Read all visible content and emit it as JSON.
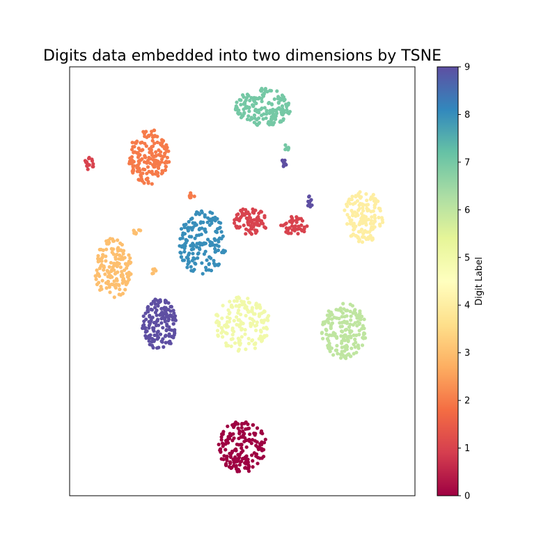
{
  "chart_data": {
    "type": "scatter",
    "title": "Digits data embedded into two dimensions by TSNE",
    "xlabel": "",
    "ylabel": "",
    "xlim": [
      0,
      100
    ],
    "ylim": [
      0,
      100
    ],
    "x_ticks_visible": false,
    "y_ticks_visible": false,
    "grid": false,
    "colormap": "Spectral",
    "colormap_stops": [
      "#9e0142",
      "#d53e4f",
      "#f46d43",
      "#fdae61",
      "#fee08b",
      "#ffffbf",
      "#e6f598",
      "#abdda4",
      "#66c2a5",
      "#3288bd",
      "#5e4fa2"
    ],
    "colorbar": {
      "label": "Digit Label",
      "range": [
        0,
        9
      ],
      "ticks": [
        "0",
        "1",
        "2",
        "3",
        "4",
        "5",
        "6",
        "7",
        "8",
        "9"
      ]
    },
    "clusters": [
      {
        "label": 0,
        "cx": 50.0,
        "cy": 11.5,
        "rx": 7.0,
        "ry": 6.0,
        "n": 180
      },
      {
        "label": 1,
        "cx": 52.5,
        "cy": 64.0,
        "rx": 5.0,
        "ry": 3.2,
        "n": 80
      },
      {
        "label": 1,
        "cx": 65.0,
        "cy": 63.0,
        "rx": 3.8,
        "ry": 2.2,
        "n": 45
      },
      {
        "label": 1,
        "cx": 5.7,
        "cy": 77.5,
        "rx": 1.4,
        "ry": 1.5,
        "n": 15
      },
      {
        "label": 2,
        "cx": 23.0,
        "cy": 79.0,
        "rx": 6.0,
        "ry": 6.5,
        "n": 170
      },
      {
        "label": 2,
        "cx": 35.5,
        "cy": 70.0,
        "rx": 1.2,
        "ry": 0.7,
        "n": 8
      },
      {
        "label": 3,
        "cx": 12.5,
        "cy": 53.0,
        "rx": 5.5,
        "ry": 7.0,
        "n": 160
      },
      {
        "label": 3,
        "cx": 19.5,
        "cy": 61.5,
        "rx": 1.5,
        "ry": 0.8,
        "n": 8
      },
      {
        "label": 3,
        "cx": 24.5,
        "cy": 52.5,
        "rx": 0.8,
        "ry": 1.0,
        "n": 6
      },
      {
        "label": 4,
        "cx": 85.0,
        "cy": 65.0,
        "rx": 6.0,
        "ry": 6.0,
        "n": 150
      },
      {
        "label": 5,
        "cx": 50.0,
        "cy": 40.0,
        "rx": 8.0,
        "ry": 6.5,
        "n": 160
      },
      {
        "label": 6,
        "cx": 79.5,
        "cy": 38.5,
        "rx": 6.5,
        "ry": 6.5,
        "n": 170
      },
      {
        "label": 7,
        "cx": 56.0,
        "cy": 90.5,
        "rx": 8.0,
        "ry": 4.5,
        "n": 170
      },
      {
        "label": 7,
        "cx": 63.0,
        "cy": 81.2,
        "rx": 1.5,
        "ry": 0.6,
        "n": 8
      },
      {
        "label": 8,
        "cx": 38.5,
        "cy": 59.0,
        "rx": 7.0,
        "ry": 7.5,
        "n": 170
      },
      {
        "label": 9,
        "cx": 26.0,
        "cy": 40.0,
        "rx": 5.0,
        "ry": 6.0,
        "n": 160
      },
      {
        "label": 9,
        "cx": 62.0,
        "cy": 77.5,
        "rx": 0.8,
        "ry": 0.9,
        "n": 10
      },
      {
        "label": 9,
        "cx": 69.5,
        "cy": 68.5,
        "rx": 0.8,
        "ry": 1.4,
        "n": 12
      }
    ]
  }
}
